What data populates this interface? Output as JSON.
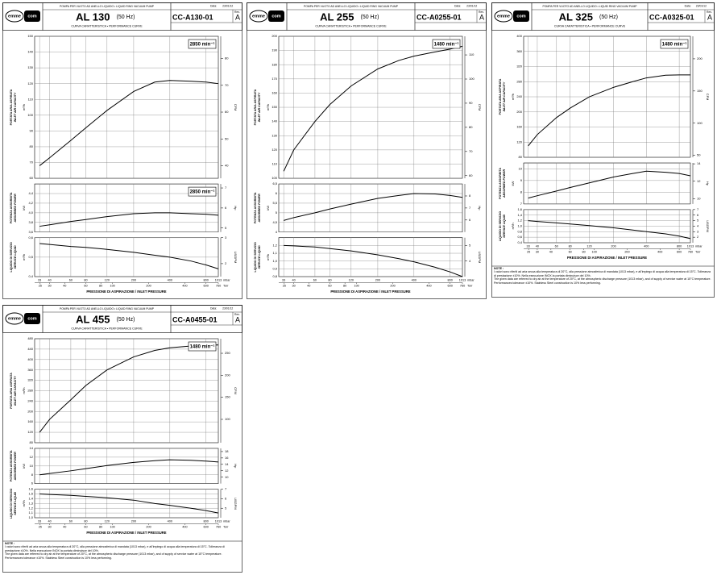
{
  "sheets": [
    {
      "logo": [
        "emme",
        "com"
      ],
      "pump": "POMPA PER VUOTO AD ANELLO LIQUIDO • LIQUID RING VACUUM PUMP",
      "model": "AL 130",
      "hz": "(50 Hz)",
      "curve": "CURVA CARATTERISTICA • PERFORMANCE CURVE",
      "code": "CC-A130-01",
      "date_label": "Data:",
      "date": "23/01/12",
      "rev_label": "Rev.",
      "rev": "A",
      "log_x": true,
      "x": [
        33,
        40,
        60,
        80,
        120,
        200,
        300,
        400,
        600,
        800,
        1013
      ],
      "xlim": [
        30,
        1013
      ],
      "xticks": [
        33,
        40,
        60,
        80,
        120,
        200,
        400,
        800,
        1013
      ],
      "x2ticks": [
        25,
        30,
        40,
        60,
        80,
        100,
        200,
        400,
        600,
        760
      ],
      "xunit": "mbar",
      "x2unit": "Torr",
      "xlabel": "PRESSIONE DI ASPIRAZIONE / INLET PRESSURE",
      "chart_data": [
        {
          "type": "line",
          "label": [
            "PORTATA ARIA ASPIRATA",
            "INLET AIR CAPACITY"
          ],
          "unit": "m³/h",
          "unit2": "CFM",
          "annotation": "2850 min⁻¹",
          "color": "#000000",
          "values": [
            68,
            73,
            84,
            92,
            103,
            115,
            121,
            122,
            121.5,
            121,
            120
          ],
          "ylim": [
            60,
            150
          ],
          "yticks": [
            60,
            70,
            80,
            90,
            100,
            110,
            120,
            130,
            140,
            150
          ],
          "y2lim": [
            35.3,
            88.3
          ],
          "y2ticks": [
            40,
            50,
            60,
            70,
            80
          ]
        },
        {
          "type": "line",
          "label": [
            "POTENZA ASSORBITA",
            "ABSORBED POWER"
          ],
          "unit": "kW",
          "unit2": "Hp",
          "annotation": "2850 min⁻¹",
          "color": "#000000",
          "values": [
            3.72,
            3.75,
            3.82,
            3.86,
            3.92,
            3.98,
            4.0,
            4.0,
            3.98,
            3.97,
            3.95
          ],
          "ylim": [
            3.6,
            4.6
          ],
          "yticks": [
            {
              "value": 3.6,
              "label": "3,6"
            },
            {
              "value": 3.8,
              "label": "3,8"
            },
            {
              "value": 4.0,
              "label": "4,0"
            },
            {
              "value": 4.2,
              "label": "4,2"
            },
            {
              "value": 4.4,
              "label": "4,4"
            }
          ],
          "y2lim": [
            4.8,
            7.2
          ],
          "y2ticks": [
            5,
            6,
            7
          ]
        },
        {
          "type": "line",
          "label": [
            "LIQUIDO DI SERVIZIO",
            "SERVICE LIQUID"
          ],
          "unit": "m³/h",
          "unit2": "USGPM",
          "color": "#000000",
          "values": [
            0.57,
            0.565,
            0.555,
            0.55,
            0.54,
            0.525,
            0.51,
            0.5,
            0.48,
            0.46,
            0.44
          ],
          "ylim": [
            0.4,
            0.6
          ],
          "yticks": [
            {
              "value": 0.4,
              "label": "0,4"
            },
            {
              "value": 0.5,
              "label": "0,5"
            },
            {
              "value": 0.6,
              "label": "0,6"
            }
          ],
          "y2lim": [
            1.5,
            3
          ],
          "y2ticks": [
            2,
            3
          ]
        }
      ]
    },
    {
      "logo": [
        "emme",
        "com"
      ],
      "pump": "POMPA PER VUOTO AD ANELLO LIQUIDO • LIQUID RING VACUUM PUMP",
      "model": "AL 255",
      "hz": "(50 Hz)",
      "curve": "CURVA CARATTERISTICA • PERFORMANCE CURVE",
      "code": "CC-A0255-01",
      "date_label": "Data:",
      "date": "23/01/12",
      "rev_label": "Rev.",
      "rev": "A",
      "log_x": true,
      "x": [
        33,
        40,
        60,
        80,
        120,
        200,
        300,
        400,
        600,
        800,
        1013
      ],
      "xlim": [
        30,
        1013
      ],
      "xticks": [
        33,
        40,
        60,
        80,
        120,
        200,
        400,
        800,
        1013
      ],
      "x2ticks": [
        25,
        30,
        40,
        60,
        80,
        100,
        200,
        400,
        600,
        760
      ],
      "xunit": "mbar",
      "x2unit": "Torr",
      "xlabel": "PRESSIONE DI ASPIRAZIONE / INLET PRESSURE",
      "chart_data": [
        {
          "type": "line",
          "label": [
            "PORTATA ARIA ASPIRATA",
            "INLET AIR CAPACITY"
          ],
          "unit": "m³/h",
          "unit2": "CFM",
          "annotation": "1480 min⁻¹",
          "color": "#000000",
          "values": [
            105,
            120,
            140,
            152,
            165,
            177,
            183,
            186,
            189,
            191,
            193
          ],
          "ylim": [
            100,
            200
          ],
          "yticks": [
            100,
            110,
            120,
            130,
            140,
            150,
            160,
            170,
            180,
            190,
            200
          ],
          "y2lim": [
            58.9,
            117.7
          ],
          "y2ticks": [
            60,
            70,
            80,
            90,
            100,
            110
          ]
        },
        {
          "type": "line",
          "label": [
            "POTENZA ASSORBITA",
            "ABSORBED POWER"
          ],
          "unit": "kW",
          "unit2": "Hp",
          "color": "#000000",
          "values": [
            4.6,
            4.75,
            5.0,
            5.2,
            5.45,
            5.75,
            5.9,
            6.0,
            5.98,
            5.9,
            5.8
          ],
          "ylim": [
            4,
            6.5
          ],
          "yticks": [
            4,
            {
              "value": 4.5,
              "label": "4,5"
            },
            5,
            {
              "value": 5.5,
              "label": "5,5"
            },
            6,
            {
              "value": 6.5,
              "label": "6,5"
            }
          ],
          "y2lim": [
            5,
            9
          ],
          "y2ticks": [
            6,
            7,
            8
          ]
        },
        {
          "type": "line",
          "label": [
            "LIQUIDO DI SERVIZIO",
            "SERVICE LIQUID"
          ],
          "unit": "m³/h",
          "unit2": "USGPM",
          "color": "#000000",
          "values": [
            1.2,
            1.195,
            1.18,
            1.16,
            1.13,
            1.08,
            1.03,
            0.99,
            0.92,
            0.86,
            0.8
          ],
          "ylim": [
            0.8,
            1.3
          ],
          "yticks": [
            {
              "value": 0.8,
              "label": "0,8"
            },
            {
              "value": 0.9,
              "label": "0,9"
            },
            {
              "value": 1.0,
              "label": "1,0"
            },
            {
              "value": 1.1,
              "label": "1,1"
            },
            {
              "value": 1.2,
              "label": "1,2"
            }
          ],
          "y2lim": [
            3,
            5.5
          ],
          "y2ticks": [
            4,
            5
          ]
        }
      ]
    },
    {
      "logo": [
        "emme",
        "com"
      ],
      "pump": "POMPA PER VUOTO AD ANELLO LIQUIDO • LIQUID RING VACUUM PUMP",
      "model": "AL 325",
      "hz": "(50 Hz)",
      "curve": "CURVA CARATTERISTICA • PERFORMANCE CURVE",
      "code": "CC-A0325-01",
      "date_label": "Data:",
      "date": "23/01/12",
      "rev_label": "Rev.",
      "rev": "A",
      "log_x": true,
      "x": [
        33,
        40,
        60,
        80,
        120,
        200,
        300,
        400,
        600,
        800,
        1013
      ],
      "xlim": [
        30,
        1013
      ],
      "xticks": [
        33,
        40,
        60,
        80,
        120,
        200,
        400,
        800,
        1013
      ],
      "x2ticks": [
        25,
        30,
        40,
        60,
        80,
        100,
        200,
        400,
        600,
        760
      ],
      "xunit": "mbar",
      "x2unit": "Torr",
      "xlabel": "PRESSIONE DI ASPIRAZIONE / INLET PRESSURE",
      "chart_data": [
        {
          "type": "line",
          "label": [
            "PORTATA ARIA ASPIRATA",
            "INLET AIR CAPACITY"
          ],
          "unit": "m³/h",
          "unit2": "CFM",
          "annotation": "1480 min⁻¹",
          "color": "#000000",
          "values": [
            110,
            140,
            185,
            210,
            240,
            265,
            280,
            290,
            297,
            298,
            298
          ],
          "ylim": [
            80,
            400
          ],
          "yticks": [
            80,
            120,
            160,
            200,
            240,
            280,
            320,
            360,
            400
          ],
          "y2lim": [
            47,
            235
          ],
          "y2ticks": [
            50,
            100,
            150,
            200
          ]
        },
        {
          "type": "line",
          "label": [
            "POTENZA ASSORBITA",
            "ABSORBED POWER"
          ],
          "unit": "kW",
          "unit2": "Hp",
          "color": "#000000",
          "values": [
            7.5,
            7.7,
            8.1,
            8.4,
            8.8,
            9.3,
            9.6,
            9.8,
            9.7,
            9.6,
            9.4
          ],
          "ylim": [
            7,
            10.5
          ],
          "yticks": [
            7,
            8,
            9,
            10
          ],
          "y2lim": [
            9.4,
            14.1
          ],
          "y2ticks": [
            10,
            12,
            14
          ]
        },
        {
          "type": "line",
          "label": [
            "LIQUIDO DI SERVIZIO",
            "SERVICE LIQUID"
          ],
          "unit": "m³/h",
          "unit2": "USGPM",
          "color": "#000000",
          "values": [
            1.2,
            1.17,
            1.12,
            1.08,
            1.02,
            0.94,
            0.86,
            0.8,
            0.72,
            0.64,
            0.55
          ],
          "ylim": [
            0.4,
            1.6
          ],
          "yticks": [
            {
              "value": 0.4,
              "label": "0,4"
            },
            {
              "value": 0.6,
              "label": "0,6"
            },
            {
              "value": 0.8,
              "label": "0,8"
            },
            {
              "value": 1.0,
              "label": "1,0"
            },
            {
              "value": 1.2,
              "label": "1,2"
            },
            {
              "value": 1.4,
              "label": "1,4"
            },
            {
              "value": 1.6,
              "label": "1,6"
            }
          ],
          "y2lim": [
            1,
            7
          ],
          "y2ticks": [
            2,
            3,
            4,
            5,
            6,
            7
          ]
        }
      ],
      "notes": [
        "NOTE :",
        "I valori sono riferiti ad aria secca alla temperatura di 20°C, alla pressione atmosferica di mandata (1013 mbar), e all'impiego di acqua alla temperatura di 15°C. Tolleranza di prestazione ±10%. Nella esecuzione INOX la portata diminuisce del 10%.",
        "The given data are referred to dry air at the temperature of 20°C, at the atmospheric discharge pressure (1013 mbar), and of supply of service water at 15°C temperature. Performances tolerance ±10%. Stainless Steel construction is 10% less performing."
      ]
    },
    {
      "logo": [
        "emme",
        "com"
      ],
      "pump": "POMPA PER VUOTO AD ANELLO LIQUIDO • LIQUID RING VACUUM PUMP",
      "model": "AL 455",
      "hz": "(50 Hz)",
      "curve": "CURVA CARATTERISTICA • PERFORMANCE CURVE",
      "code": "CC-A0455-01",
      "date_label": "Data:",
      "date": "23/01/12",
      "rev_label": "Rev.",
      "rev": "A",
      "log_x": true,
      "x": [
        33,
        40,
        60,
        80,
        120,
        200,
        300,
        400,
        600,
        800,
        1013
      ],
      "xlim": [
        30,
        1013
      ],
      "xticks": [
        33,
        40,
        60,
        80,
        120,
        200,
        400,
        800,
        1013
      ],
      "x2ticks": [
        25,
        30,
        40,
        60,
        80,
        100,
        200,
        400,
        600,
        760
      ],
      "xunit": "mbar",
      "x2unit": "Torr",
      "xlabel": "PRESSIONE DI ASPIRAZIONE / INLET PRESSURE",
      "chart_data": [
        {
          "type": "line",
          "label": [
            "PORTATA ARIA ASPIRATA",
            "INLET AIR CAPACITY"
          ],
          "unit": "m³/h",
          "unit2": "CFM",
          "annotation": "1480 min⁻¹",
          "color": "#000000",
          "values": [
            120,
            170,
            245,
            300,
            360,
            410,
            435,
            445,
            452,
            455,
            456
          ],
          "ylim": [
            80,
            480
          ],
          "yticks": [
            80,
            120,
            160,
            200,
            240,
            280,
            320,
            360,
            400,
            440,
            480
          ],
          "y2lim": [
            47,
            283
          ],
          "y2ticks": [
            100,
            150,
            200,
            250
          ]
        },
        {
          "type": "line",
          "label": [
            "POTENZA ASSORBITA",
            "ABSORBED POWER"
          ],
          "unit": "kW",
          "unit2": "Hp",
          "color": "#000000",
          "values": [
            8.0,
            8.3,
            8.9,
            9.4,
            10.1,
            10.8,
            11.2,
            11.4,
            11.3,
            11.1,
            10.9
          ],
          "ylim": [
            6,
            14
          ],
          "yticks": [
            6,
            8,
            10,
            12,
            14
          ],
          "y2lim": [
            8,
            19
          ],
          "y2ticks": [
            10,
            12,
            14,
            16,
            18
          ]
        },
        {
          "type": "line",
          "label": [
            "LIQUIDO DI SERVIZIO",
            "SERVICE LIQUID"
          ],
          "unit": "m³/h",
          "unit2": "USGPM",
          "color": "#000000",
          "values": [
            1.5,
            1.49,
            1.47,
            1.45,
            1.42,
            1.37,
            1.3,
            1.26,
            1.2,
            1.15,
            1.1
          ],
          "ylim": [
            1.0,
            1.6
          ],
          "yticks": [
            {
              "value": 1.0,
              "label": "1,0"
            },
            {
              "value": 1.1,
              "label": "1,1"
            },
            {
              "value": 1.2,
              "label": "1,2"
            },
            {
              "value": 1.3,
              "label": "1,3"
            },
            {
              "value": 1.4,
              "label": "1,4"
            },
            {
              "value": 1.5,
              "label": "1,5"
            },
            {
              "value": 1.6,
              "label": "1,6"
            }
          ],
          "y2lim": [
            4,
            7
          ],
          "y2ticks": [
            5,
            6,
            7
          ]
        }
      ],
      "notes": [
        "NOTE :",
        "I valori sono riferiti ad aria secca alla temperatura di 20°C, alla pressione atmosferica di mandata (1013 mbar), e all'impiego di acqua alla temperatura di 15°C. Tolleranza di prestazione ±10%. Nella esecuzione INOX la portata diminuisce del 10%.",
        "The given data are referred to dry air at the temperature of 20°C, at the atmospheric discharge pressure (1013 mbar), and of supply of service water at 15°C temperature. Performances tolerance ±10%. Stainless Steel construction is 10% less performing."
      ]
    }
  ]
}
